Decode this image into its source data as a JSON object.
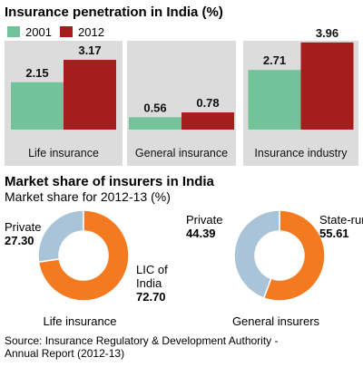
{
  "colors": {
    "series_2001": "#72c39a",
    "series_2012": "#a51d1d",
    "private": "#a9c4d8",
    "state_run": "#f47a21",
    "panel_bg": "#dcdcdc",
    "text": "#111111"
  },
  "chart_data": [
    {
      "type": "bar",
      "title": "Insurance penetration in India (%)",
      "categories": [
        "Life insurance",
        "General insurance",
        "Insurance industry"
      ],
      "series": [
        {
          "name": "2001",
          "values": [
            2.15,
            0.56,
            2.71
          ],
          "value_labels": [
            "2.15",
            "0.56",
            "2.71"
          ]
        },
        {
          "name": "2012",
          "values": [
            3.17,
            0.78,
            3.96
          ],
          "value_labels": [
            "3.17",
            "0.78",
            "3.96"
          ]
        }
      ],
      "ylim": [
        0,
        4.2
      ],
      "legend_position": "top-left",
      "grid": false
    },
    {
      "type": "pie",
      "title": "Market share of insurers in India",
      "subtitle": "Market share for 2012-13 (%)",
      "caption": "Life insurance",
      "slices": [
        {
          "name": "Private",
          "value": 27.3,
          "value_label": "27.30",
          "color": "#a9c4d8"
        },
        {
          "name": "LIC of India",
          "value": 72.7,
          "value_label": "72.70",
          "color": "#f47a21",
          "label_lines": [
            "LIC of",
            "India"
          ]
        }
      ]
    },
    {
      "type": "pie",
      "caption": "General insurers",
      "slices": [
        {
          "name": "Private",
          "value": 44.39,
          "value_label": "44.39",
          "color": "#a9c4d8"
        },
        {
          "name": "State-run",
          "value": 55.61,
          "value_label": "55.61",
          "color": "#f47a21"
        }
      ]
    }
  ],
  "source": {
    "line1": "Source: Insurance Regulatory & Development Authority -",
    "line2": "Annual Report (2012-13)"
  }
}
